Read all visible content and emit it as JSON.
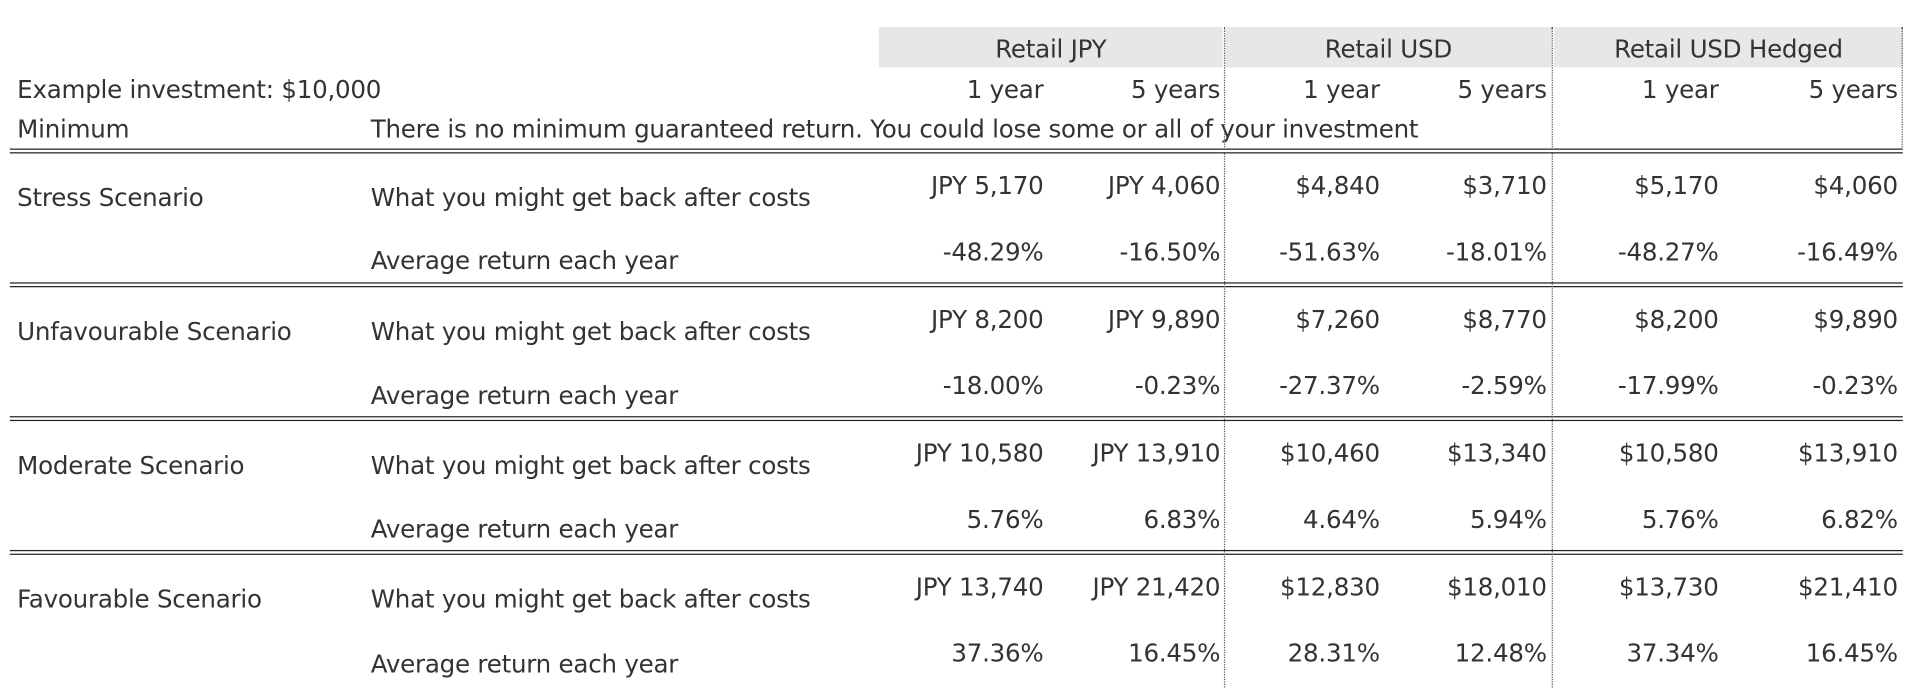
{
  "header": {
    "groups": [
      "Retail JPY",
      "Retail USD",
      "Retail USD Hedged"
    ],
    "example_investment": "Example investment: $10,000",
    "periods": [
      "1 year",
      "5 years",
      "1 year",
      "5 years",
      "1 year",
      "5 years"
    ],
    "minimum_label": "Minimum",
    "minimum_text": "There is no minimum guaranteed return. You could lose some or all of your investment"
  },
  "row_labels": {
    "get_back": "What you might get back after costs",
    "avg_return": "Average return each year"
  },
  "scenarios": [
    {
      "name": "Stress Scenario",
      "get_back": [
        "JPY 5,170",
        "JPY 4,060",
        "$4,840",
        "$3,710",
        "$5,170",
        "$4,060"
      ],
      "avg_return": [
        "-48.29%",
        "-16.50%",
        "-51.63%",
        "-18.01%",
        "-48.27%",
        "-16.49%"
      ]
    },
    {
      "name": "Unfavourable Scenario",
      "get_back": [
        "JPY 8,200",
        "JPY 9,890",
        "$7,260",
        "$8,770",
        "$8,200",
        "$9,890"
      ],
      "avg_return": [
        "-18.00%",
        "-0.23%",
        "-27.37%",
        "-2.59%",
        "-17.99%",
        "-0.23%"
      ]
    },
    {
      "name": "Moderate Scenario",
      "get_back": [
        "JPY 10,580",
        "JPY 13,910",
        "$10,460",
        "$13,340",
        "$10,580",
        "$13,910"
      ],
      "avg_return": [
        "5.76%",
        "6.83%",
        "4.64%",
        "5.94%",
        "5.76%",
        "6.82%"
      ]
    },
    {
      "name": "Favourable Scenario",
      "get_back": [
        "JPY 13,740",
        "JPY 21,420",
        "$12,830",
        "$18,010",
        "$13,730",
        "$21,410"
      ],
      "avg_return": [
        "37.36%",
        "16.45%",
        "28.31%",
        "12.48%",
        "37.34%",
        "16.45%"
      ]
    }
  ]
}
